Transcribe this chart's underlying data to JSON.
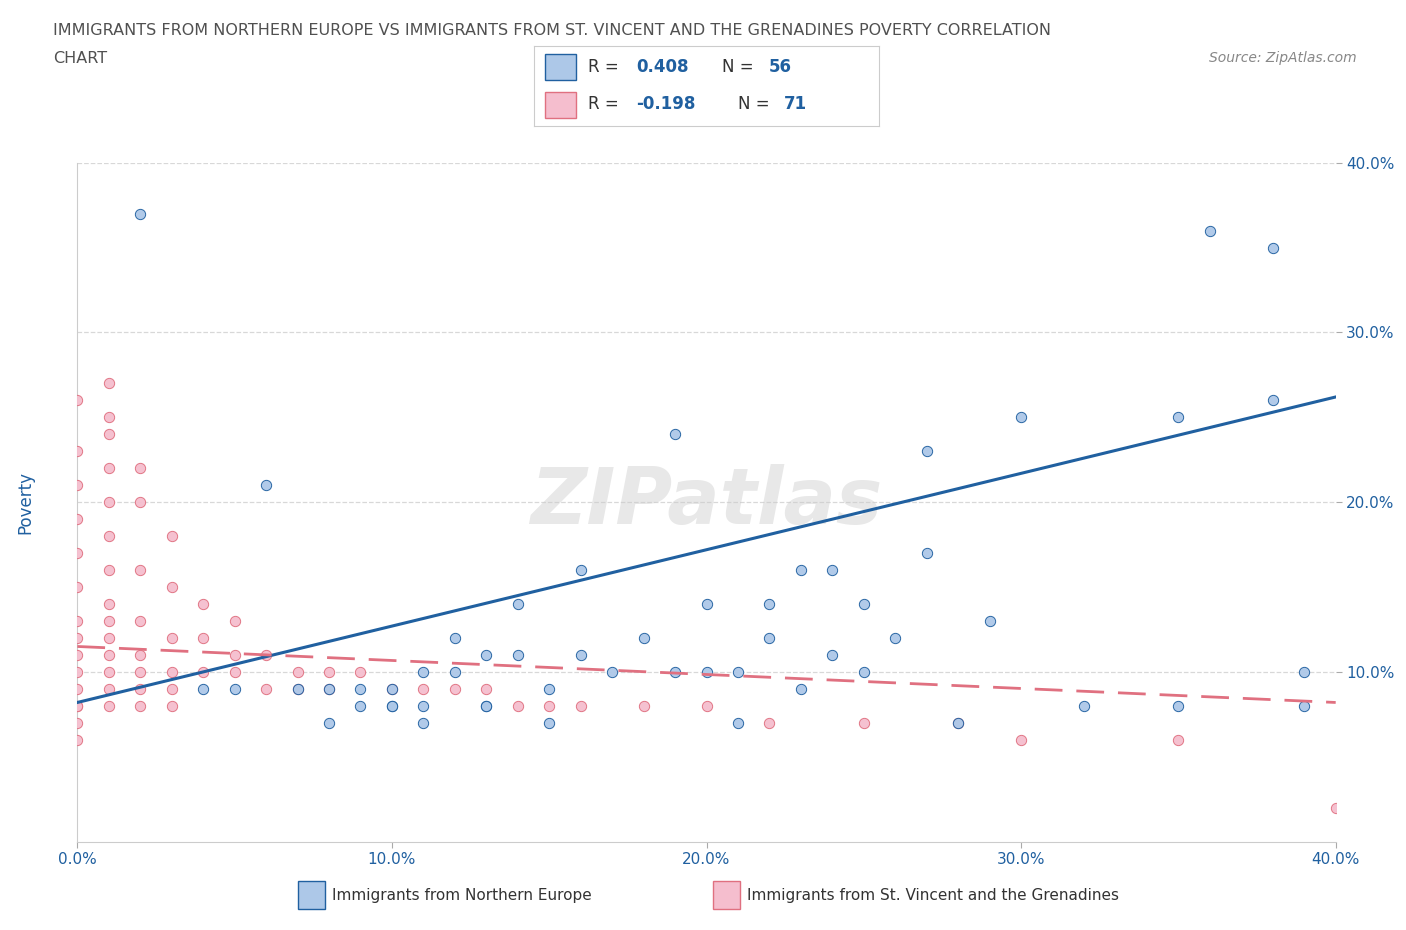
{
  "title_line1": "IMMIGRANTS FROM NORTHERN EUROPE VS IMMIGRANTS FROM ST. VINCENT AND THE GRENADINES POVERTY CORRELATION",
  "title_line2": "CHART",
  "source": "Source: ZipAtlas.com",
  "ylabel": "Poverty",
  "xmin": 0.0,
  "xmax": 0.4,
  "ymin": 0.0,
  "ymax": 0.4,
  "blue_R": 0.408,
  "blue_N": 56,
  "pink_R": -0.198,
  "pink_N": 71,
  "blue_color": "#adc8e8",
  "pink_color": "#f5bece",
  "blue_line_color": "#2060a0",
  "pink_line_color": "#e07080",
  "watermark": "ZIPatlas",
  "blue_scatter_x": [
    0.05,
    0.07,
    0.08,
    0.09,
    0.1,
    0.1,
    0.11,
    0.11,
    0.12,
    0.12,
    0.13,
    0.13,
    0.14,
    0.14,
    0.15,
    0.16,
    0.17,
    0.18,
    0.19,
    0.2,
    0.2,
    0.21,
    0.22,
    0.22,
    0.23,
    0.24,
    0.24,
    0.25,
    0.26,
    0.27,
    0.28,
    0.29,
    0.3,
    0.32,
    0.35,
    0.36,
    0.38,
    0.08,
    0.09,
    0.1,
    0.11,
    0.13,
    0.15,
    0.21,
    0.23,
    0.25,
    0.35,
    0.38,
    0.04,
    0.06,
    0.16,
    0.19,
    0.27,
    0.39,
    0.02,
    0.39
  ],
  "blue_scatter_y": [
    0.09,
    0.09,
    0.09,
    0.09,
    0.08,
    0.09,
    0.1,
    0.08,
    0.1,
    0.12,
    0.08,
    0.11,
    0.11,
    0.14,
    0.09,
    0.11,
    0.1,
    0.12,
    0.1,
    0.1,
    0.14,
    0.1,
    0.12,
    0.14,
    0.09,
    0.11,
    0.16,
    0.14,
    0.12,
    0.17,
    0.07,
    0.13,
    0.25,
    0.08,
    0.25,
    0.36,
    0.26,
    0.07,
    0.08,
    0.08,
    0.07,
    0.08,
    0.07,
    0.07,
    0.16,
    0.1,
    0.08,
    0.35,
    0.09,
    0.21,
    0.16,
    0.24,
    0.23,
    0.1,
    0.37,
    0.08
  ],
  "pink_scatter_x": [
    0.0,
    0.0,
    0.0,
    0.0,
    0.0,
    0.0,
    0.0,
    0.0,
    0.0,
    0.0,
    0.0,
    0.0,
    0.01,
    0.01,
    0.01,
    0.01,
    0.01,
    0.01,
    0.01,
    0.01,
    0.01,
    0.01,
    0.01,
    0.01,
    0.01,
    0.02,
    0.02,
    0.02,
    0.02,
    0.02,
    0.02,
    0.02,
    0.03,
    0.03,
    0.03,
    0.03,
    0.03,
    0.04,
    0.04,
    0.04,
    0.05,
    0.05,
    0.05,
    0.06,
    0.06,
    0.07,
    0.07,
    0.08,
    0.08,
    0.09,
    0.1,
    0.11,
    0.12,
    0.13,
    0.14,
    0.15,
    0.16,
    0.18,
    0.2,
    0.22,
    0.25,
    0.28,
    0.3,
    0.35,
    0.4,
    0.03,
    0.0,
    0.0,
    0.0,
    0.01,
    0.02
  ],
  "pink_scatter_y": [
    0.08,
    0.09,
    0.1,
    0.11,
    0.12,
    0.13,
    0.15,
    0.17,
    0.19,
    0.21,
    0.23,
    0.26,
    0.09,
    0.1,
    0.11,
    0.12,
    0.13,
    0.14,
    0.16,
    0.18,
    0.2,
    0.22,
    0.24,
    0.25,
    0.27,
    0.09,
    0.1,
    0.11,
    0.13,
    0.16,
    0.2,
    0.22,
    0.09,
    0.1,
    0.12,
    0.15,
    0.18,
    0.1,
    0.12,
    0.14,
    0.1,
    0.11,
    0.13,
    0.09,
    0.11,
    0.09,
    0.1,
    0.09,
    0.1,
    0.1,
    0.09,
    0.09,
    0.09,
    0.09,
    0.08,
    0.08,
    0.08,
    0.08,
    0.08,
    0.07,
    0.07,
    0.07,
    0.06,
    0.06,
    0.02,
    0.08,
    0.06,
    0.07,
    0.08,
    0.08,
    0.08
  ],
  "xtick_labels": [
    "0.0%",
    "10.0%",
    "20.0%",
    "30.0%",
    "40.0%"
  ],
  "xtick_vals": [
    0.0,
    0.1,
    0.2,
    0.3,
    0.4
  ],
  "ytick_labels": [
    "10.0%",
    "20.0%",
    "30.0%",
    "40.0%"
  ],
  "ytick_vals": [
    0.1,
    0.2,
    0.3,
    0.4
  ],
  "grid_color": "#d8d8d8",
  "bg_color": "#ffffff",
  "title_color": "#505050",
  "tick_color": "#2060a0",
  "legend_label1": "Immigrants from Northern Europe",
  "legend_label2": "Immigrants from St. Vincent and the Grenadines",
  "blue_line_y0": 0.082,
  "blue_line_y1": 0.262,
  "pink_line_y0": 0.115,
  "pink_line_y1": 0.082
}
